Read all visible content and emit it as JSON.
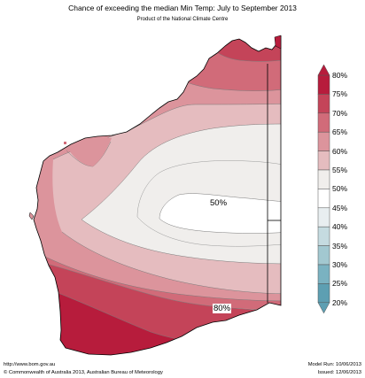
{
  "title": "Chance of exceeding the median Min Temp: July to September 2013",
  "subtitle": "Product of the National Climate Centre",
  "map_labels": {
    "center": "50%",
    "south": "80%"
  },
  "legend": {
    "ticks": [
      "80%",
      "75%",
      "70%",
      "65%",
      "60%",
      "55%",
      "50%",
      "45%",
      "40%",
      "35%",
      "30%",
      "25%",
      "20%"
    ],
    "colors": [
      "#b71c3c",
      "#c44459",
      "#d16b79",
      "#dc949c",
      "#e5bcbf",
      "#f0eeec",
      "#ffffff",
      "#e8eef0",
      "#c5dbe0",
      "#a2c8d0",
      "#7ab2c1",
      "#5d9fb2"
    ]
  },
  "footer": {
    "url": "http://www.bom.gov.au",
    "copyright": "©  Commonwealth of Australia 2013, Australian Bureau of Meteorology",
    "model_run": "Model Run: 10/06/2013",
    "issued": "Issued: 12/06/2013"
  }
}
